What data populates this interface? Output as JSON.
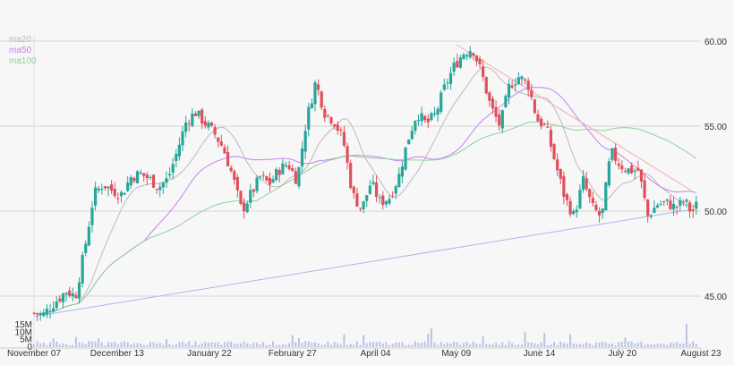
{
  "chart_data": {
    "type": "candlestick",
    "price_axis": {
      "ticks": [
        45,
        50,
        55,
        60
      ],
      "tick_labels": [
        "45.00",
        "50.00",
        "55.00",
        "60.00"
      ],
      "ylim": [
        43.4,
        60.5
      ],
      "side": "right"
    },
    "volume_axis": {
      "ticks": [
        0,
        5000000,
        10000000,
        15000000
      ],
      "tick_labels": [
        "0",
        "5M",
        "10M",
        "15M"
      ],
      "ylim": [
        0,
        16500000
      ],
      "side": "left"
    },
    "x_axis": {
      "categories": [
        "November 07",
        "December 13",
        "January 22",
        "February 27",
        "April 04",
        "May 09",
        "June 14",
        "July 20",
        "August 23"
      ],
      "category_days": [
        0,
        36,
        76,
        112,
        148,
        183,
        219,
        255,
        289
      ],
      "range_days": [
        0,
        289
      ]
    },
    "legend": [
      {
        "label": "ma20",
        "color": "#bbbbbb"
      },
      {
        "label": "ma50",
        "color": "#c481f2"
      },
      {
        "label": "ma100",
        "color": "#8fd19a"
      }
    ],
    "legend_position": "top-left",
    "grid": true,
    "colors": {
      "up": "#26a69a",
      "down": "#e0505c",
      "volume": "#b9c3e6",
      "trendline_down": "#f2aeb4",
      "trendline_up": "#aab8e8"
    },
    "trendlines": [
      {
        "name": "resistance",
        "from": [
          183,
          59.8
        ],
        "to": [
          285,
          51.2
        ]
      },
      {
        "name": "support",
        "from": [
          0,
          43.8
        ],
        "to": [
          285,
          50.1
        ]
      }
    ],
    "price_anchors": [
      [
        0,
        44.0
      ],
      [
        4,
        43.9
      ],
      [
        8,
        44.5
      ],
      [
        14,
        45.3
      ],
      [
        18,
        45.0
      ],
      [
        22,
        47.8
      ],
      [
        26,
        51.0
      ],
      [
        30,
        51.6
      ],
      [
        34,
        51.2
      ],
      [
        38,
        51.0
      ],
      [
        42,
        52.0
      ],
      [
        46,
        52.2
      ],
      [
        50,
        51.9
      ],
      [
        54,
        51.4
      ],
      [
        58,
        51.9
      ],
      [
        62,
        53.5
      ],
      [
        66,
        55.3
      ],
      [
        70,
        55.8
      ],
      [
        74,
        55.2
      ],
      [
        78,
        54.6
      ],
      [
        82,
        53.7
      ],
      [
        86,
        52.1
      ],
      [
        90,
        50.0
      ],
      [
        94,
        51.0
      ],
      [
        98,
        52.0
      ],
      [
        102,
        51.6
      ],
      [
        106,
        52.4
      ],
      [
        110,
        52.8
      ],
      [
        114,
        51.8
      ],
      [
        118,
        55.3
      ],
      [
        122,
        57.6
      ],
      [
        126,
        55.8
      ],
      [
        130,
        55.3
      ],
      [
        134,
        54.2
      ],
      [
        138,
        51.0
      ],
      [
        142,
        50.1
      ],
      [
        146,
        51.7
      ],
      [
        150,
        50.5
      ],
      [
        154,
        50.8
      ],
      [
        158,
        52.0
      ],
      [
        162,
        54.2
      ],
      [
        166,
        55.8
      ],
      [
        170,
        55.1
      ],
      [
        174,
        55.7
      ],
      [
        178,
        57.3
      ],
      [
        182,
        58.5
      ],
      [
        186,
        59.3
      ],
      [
        190,
        59.6
      ],
      [
        194,
        58.1
      ],
      [
        198,
        56.1
      ],
      [
        202,
        55.0
      ],
      [
        206,
        57.4
      ],
      [
        210,
        57.9
      ],
      [
        214,
        57.5
      ],
      [
        218,
        55.4
      ],
      [
        222,
        54.9
      ],
      [
        226,
        52.8
      ],
      [
        230,
        50.8
      ],
      [
        234,
        49.7
      ],
      [
        238,
        51.8
      ],
      [
        242,
        50.2
      ],
      [
        246,
        49.6
      ],
      [
        250,
        53.5
      ],
      [
        254,
        52.7
      ],
      [
        258,
        52.4
      ],
      [
        262,
        52.4
      ],
      [
        266,
        49.7
      ],
      [
        270,
        50.4
      ],
      [
        274,
        50.5
      ],
      [
        278,
        50.2
      ],
      [
        282,
        50.6
      ],
      [
        285,
        49.9
      ],
      [
        288,
        50.5
      ]
    ]
  }
}
